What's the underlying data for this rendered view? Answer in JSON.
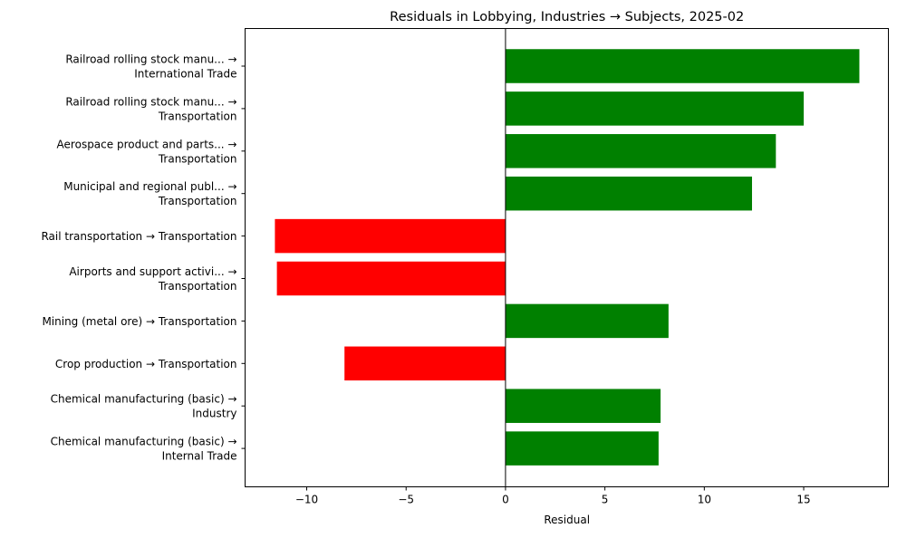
{
  "chart_data": {
    "type": "bar",
    "orientation": "horizontal",
    "title": "Residuals in Lobbying, Industries → Subjects, 2025-02",
    "xlabel": "Residual",
    "ylabel": "",
    "xlim": [
      -13.1,
      19.26
    ],
    "xticks": [
      -10,
      -5,
      0,
      5,
      10,
      15
    ],
    "xtick_labels": [
      "−10",
      "−5",
      "0",
      "5",
      "10",
      "15"
    ],
    "grid": false,
    "legend": null,
    "zero_line": true,
    "colors": {
      "positive": "#008000",
      "negative": "#ff0000"
    },
    "categories": [
      [
        "Railroad rolling stock manu... →",
        "International Trade"
      ],
      [
        "Railroad rolling stock manu... →",
        "Transportation"
      ],
      [
        "Aerospace product and parts... →",
        "Transportation"
      ],
      [
        "Municipal and regional publ... →",
        "Transportation"
      ],
      [
        "Rail transportation → Transportation"
      ],
      [
        "Airports and support activi... →",
        "Transportation"
      ],
      [
        "Mining (metal ore) → Transportation"
      ],
      [
        "Crop production → Transportation"
      ],
      [
        "Chemical manufacturing (basic) →",
        "Industry"
      ],
      [
        "Chemical manufacturing (basic) →",
        "Internal Trade"
      ]
    ],
    "values": [
      17.8,
      15.0,
      13.6,
      12.4,
      -11.6,
      -11.5,
      8.2,
      -8.1,
      7.8,
      7.7
    ]
  }
}
